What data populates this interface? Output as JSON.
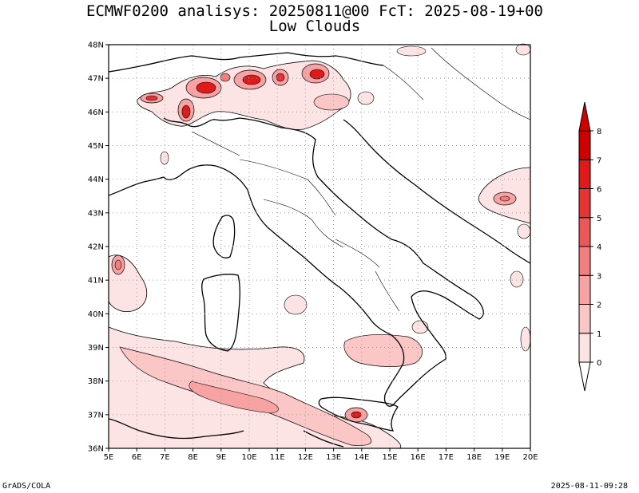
{
  "title": {
    "line1": "ECMWF0200 analisys: 20250811@00 FcT: 2025-08-19+00",
    "line2": "Low Clouds"
  },
  "map": {
    "lon_range": [
      5,
      20
    ],
    "lat_range": [
      36,
      48
    ],
    "lon_ticks": [
      "5E",
      "6E",
      "7E",
      "8E",
      "9E",
      "10E",
      "11E",
      "12E",
      "13E",
      "14E",
      "15E",
      "16E",
      "17E",
      "18E",
      "19E",
      "20E"
    ],
    "lat_ticks": [
      "36N",
      "37N",
      "38N",
      "39N",
      "40N",
      "41N",
      "42N",
      "43N",
      "44N",
      "45N",
      "46N",
      "47N",
      "48N"
    ],
    "grid": "dotted"
  },
  "colorbar": {
    "levels": [
      "0",
      "1",
      "2",
      "3",
      "4",
      "5",
      "6",
      "7",
      "8"
    ],
    "colors": [
      "#fde4e4",
      "#fbc6c6",
      "#f7a3a3",
      "#f27e7e",
      "#ec5858",
      "#e63434",
      "#e01a1a",
      "#d00000"
    ]
  },
  "footer": {
    "left": "GrADS/COLA",
    "right": "2025-08-11-09:28"
  },
  "colors": {
    "fill_light": "#fde4e4",
    "fill_mid": "#f7a3a3",
    "fill_dark": "#e01a1a"
  }
}
